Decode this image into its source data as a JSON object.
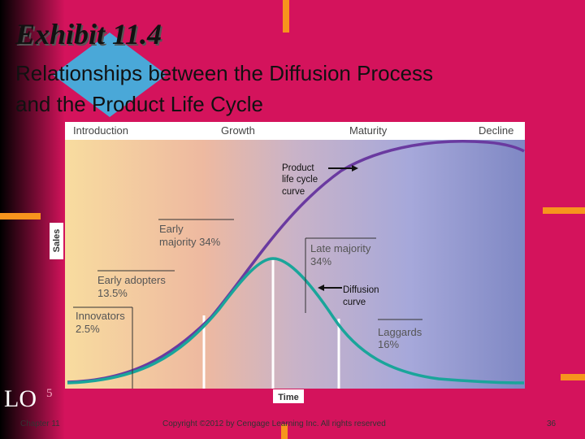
{
  "header": {
    "title": "Exhibit 11.4",
    "subtitle_lines": [
      "Relationships between the Diffusion Process",
      "and the Product Life Cycle"
    ]
  },
  "chart": {
    "stages": [
      "Introduction",
      "Growth",
      "Maturity",
      "Decline"
    ],
    "y_label": "Sales",
    "x_label": "Time",
    "plc_label": [
      "Product",
      "life cycle",
      "curve"
    ],
    "diffusion_label": [
      "Diffusion",
      "curve"
    ],
    "adopters": [
      {
        "lines": [
          "Innovators",
          "2.5%"
        ]
      },
      {
        "lines": [
          "Early adopters",
          "13.5%"
        ]
      },
      {
        "lines": [
          "Early",
          "majority 34%"
        ]
      },
      {
        "lines": [
          "Late majority",
          "34%"
        ]
      },
      {
        "lines": [
          "Laggards",
          "16%"
        ]
      }
    ]
  },
  "footer": {
    "lo": "LO",
    "lo_number": "5",
    "chapter": "Chapter 11",
    "copyright": "Copyright ©2012 by Cengage Learning Inc. All rights reserved",
    "page": "36"
  }
}
